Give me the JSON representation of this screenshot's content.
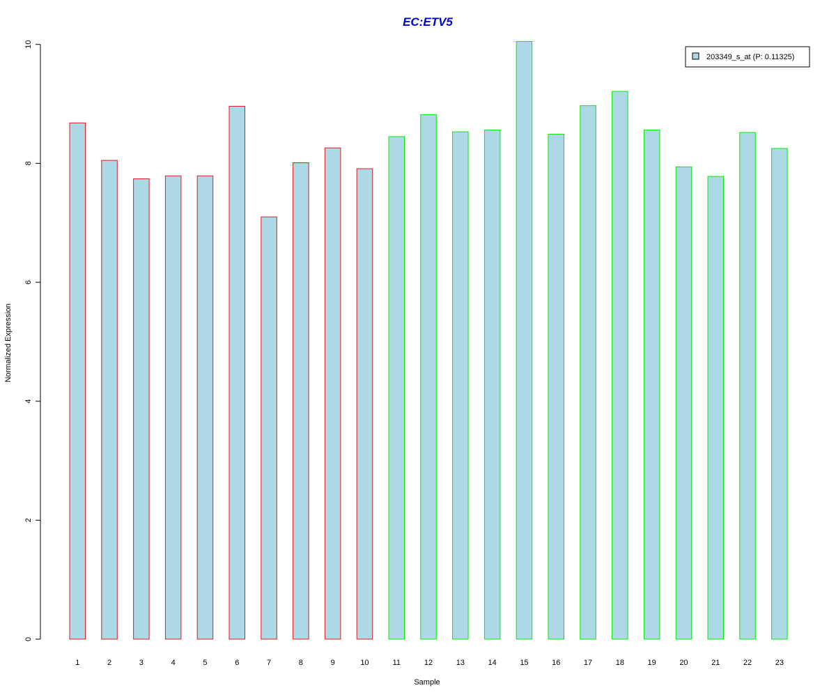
{
  "chart_data": {
    "type": "bar",
    "title": "EC:ETV5",
    "xlabel": "Sample",
    "ylabel": "Normalized Expression",
    "ylim": [
      0,
      10
    ],
    "yticks": [
      0,
      2,
      4,
      6,
      8,
      10
    ],
    "categories": [
      "1",
      "2",
      "3",
      "4",
      "5",
      "6",
      "7",
      "8",
      "9",
      "10",
      "11",
      "12",
      "13",
      "14",
      "15",
      "16",
      "17",
      "18",
      "19",
      "20",
      "21",
      "22",
      "23"
    ],
    "series": [
      {
        "name": "203349_s_at (P: 0.11325)",
        "values": [
          8.68,
          8.05,
          7.74,
          7.79,
          7.79,
          8.96,
          7.1,
          8.01,
          8.26,
          7.91,
          8.45,
          8.82,
          8.53,
          8.56,
          10.05,
          8.49,
          8.97,
          9.21,
          8.56,
          7.94,
          7.78,
          8.52,
          8.25
        ]
      }
    ],
    "groups": [
      {
        "samples": [
          1,
          10
        ],
        "outline_color": "#e31a1c"
      },
      {
        "samples": [
          11,
          23
        ],
        "outline_color": "#00ee00"
      }
    ],
    "fill_color": "#add8e6",
    "title_color": "#0000cd",
    "legend_position": "top-right",
    "grid": false
  }
}
